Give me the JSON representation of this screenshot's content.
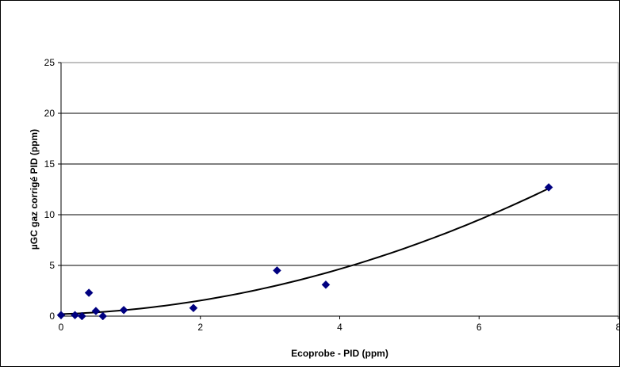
{
  "chart_data": {
    "type": "scatter",
    "title": "",
    "xlabel": "Ecoprobe - PID (ppm)",
    "ylabel": "µGC gaz corrigé PID (ppm)",
    "xlim": [
      0,
      8
    ],
    "ylim": [
      0,
      25
    ],
    "x_ticks": [
      0,
      2,
      4,
      6,
      8
    ],
    "y_ticks": [
      0,
      5,
      10,
      15,
      20,
      25
    ],
    "grid": "horizontal",
    "legend": "none",
    "marker": "diamond",
    "colors": {
      "marker": "#000080",
      "trendline": "#000000",
      "grid": "#000000"
    },
    "series": [
      {
        "points": [
          {
            "x": 0.0,
            "y": 0.1
          },
          {
            "x": 0.2,
            "y": 0.1
          },
          {
            "x": 0.3,
            "y": 0.0
          },
          {
            "x": 0.4,
            "y": 2.3
          },
          {
            "x": 0.5,
            "y": 0.5
          },
          {
            "x": 0.6,
            "y": 0.0
          },
          {
            "x": 0.9,
            "y": 0.6
          },
          {
            "x": 1.9,
            "y": 0.8
          },
          {
            "x": 3.1,
            "y": 4.5
          },
          {
            "x": 3.8,
            "y": 3.1
          },
          {
            "x": 7.0,
            "y": 12.7
          }
        ]
      }
    ],
    "trendline": {
      "type": "polynomial",
      "x_range": [
        0,
        7
      ],
      "coefficients": [
        0.2,
        0.23,
        0.22
      ]
    }
  }
}
